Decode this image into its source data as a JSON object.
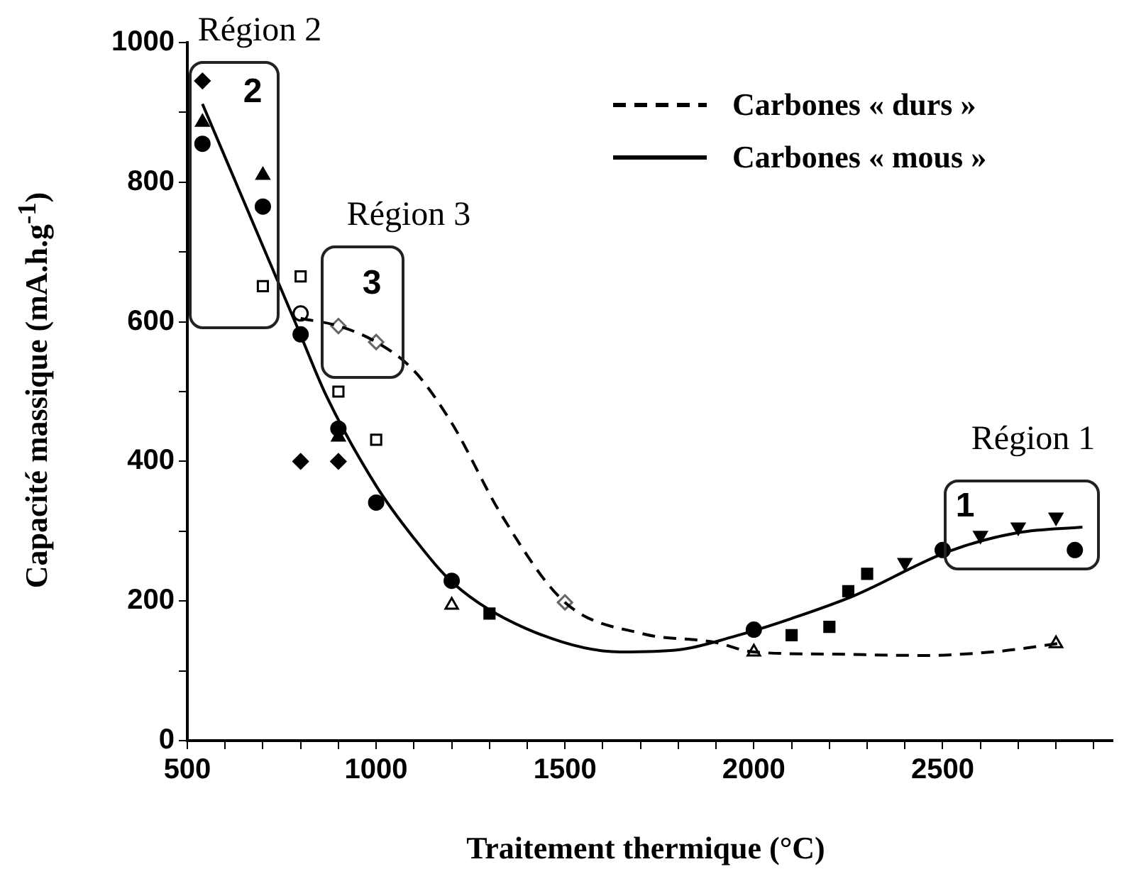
{
  "chart_data": {
    "type": "scatter",
    "xlabel": "Traitement thermique (°C)",
    "ylabel": "Capacité massique (mA.h.g$^{-1}$)",
    "xlim": [
      500,
      2950
    ],
    "ylim": [
      0,
      1000
    ],
    "xticks": [
      500,
      {
        "value": 600,
        "label": null
      },
      {
        "value": 700,
        "label": null
      },
      {
        "value": 800,
        "label": null
      },
      {
        "value": 900,
        "label": null
      },
      1000,
      {
        "value": 1100,
        "label": null
      },
      {
        "value": 1200,
        "label": null
      },
      {
        "value": 1300,
        "label": null
      },
      {
        "value": 1400,
        "label": null
      },
      1500,
      {
        "value": 1600,
        "label": null
      },
      {
        "value": 1700,
        "label": null
      },
      {
        "value": 1800,
        "label": null
      },
      {
        "value": 1900,
        "label": null
      },
      2000,
      {
        "value": 2100,
        "label": null
      },
      {
        "value": 2200,
        "label": null
      },
      {
        "value": 2300,
        "label": null
      },
      {
        "value": 2400,
        "label": null
      },
      2500,
      {
        "value": 2600,
        "label": null
      },
      {
        "value": 2700,
        "label": null
      },
      {
        "value": 2800,
        "label": null
      },
      {
        "value": 2900,
        "label": null
      }
    ],
    "yticks": [
      0,
      {
        "value": 100,
        "label": null
      },
      200,
      {
        "value": 300,
        "label": null
      },
      400,
      {
        "value": 500,
        "label": null
      },
      600,
      {
        "value": 700,
        "label": null
      },
      800,
      {
        "value": 900,
        "label": null
      },
      1000
    ],
    "legend": "top right",
    "series": [
      {
        "name": "Carbones « durs »",
        "type": "line",
        "line_style": "dashed",
        "marker": "none",
        "color": "#000000",
        "x": [
          800,
          900,
          1000,
          1100,
          1200,
          1331,
          1500,
          1707,
          1895,
          2000,
          2200,
          2447,
          2650,
          2805
        ],
        "values": [
          605,
          594,
          571,
          530,
          455,
          324,
          198,
          153,
          141,
          127,
          124,
          122,
          128,
          139
        ]
      },
      {
        "name": "Carbones « mous »",
        "type": "line",
        "line_style": "solid",
        "marker": "none",
        "color": "#000000",
        "x": [
          540,
          793,
          868,
          1000,
          1100,
          1207,
          1395,
          1647,
          1800,
          1959,
          2100,
          2267,
          2515,
          2700,
          2870
        ],
        "values": [
          912,
          590,
          494,
          365,
          290,
          224,
          161,
          127,
          130,
          151,
          175,
          208,
          271,
          298,
          306
        ]
      },
      {
        "marker": "diamond",
        "color": "#000000",
        "x": [
          540,
          800,
          900
        ],
        "values": [
          945,
          400,
          400
        ]
      },
      {
        "marker": "circle",
        "color": "#000000",
        "x": [
          540,
          700,
          800,
          900,
          1000,
          1200,
          2000,
          2500,
          2850
        ],
        "values": [
          855,
          765,
          582,
          447,
          341,
          229,
          159,
          273,
          273
        ]
      },
      {
        "marker": "triangle",
        "color": "#000000",
        "x": [
          540,
          700,
          900
        ],
        "values": [
          886,
          810,
          435
        ]
      },
      {
        "marker": "square-open",
        "color": "#000000",
        "x": [
          700,
          800,
          900,
          1000
        ],
        "values": [
          651,
          665,
          500,
          431
        ]
      },
      {
        "marker": "circle-open",
        "color": "#000000",
        "x": [
          800
        ],
        "values": [
          612
        ]
      },
      {
        "marker": "diamond-open",
        "color": "#666666",
        "x": [
          900,
          1000,
          1500
        ],
        "values": [
          594,
          571,
          198
        ]
      },
      {
        "marker": "square",
        "color": "#000000",
        "x": [
          1300,
          2100,
          2200,
          2250,
          2300
        ],
        "values": [
          182,
          151,
          163,
          214,
          239
        ]
      },
      {
        "marker": "triangle-down",
        "color": "#000000",
        "x": [
          2400,
          2600,
          2700,
          2800
        ],
        "values": [
          255,
          294,
          306,
          320
        ]
      },
      {
        "marker": "triangle-open",
        "color": "#000000",
        "x": [
          1200,
          2000,
          2800
        ],
        "values": [
          194,
          127,
          139
        ]
      }
    ],
    "annotations": [
      "Région 2",
      "2",
      "Région 3",
      "3",
      "Région 1",
      "1"
    ]
  }
}
